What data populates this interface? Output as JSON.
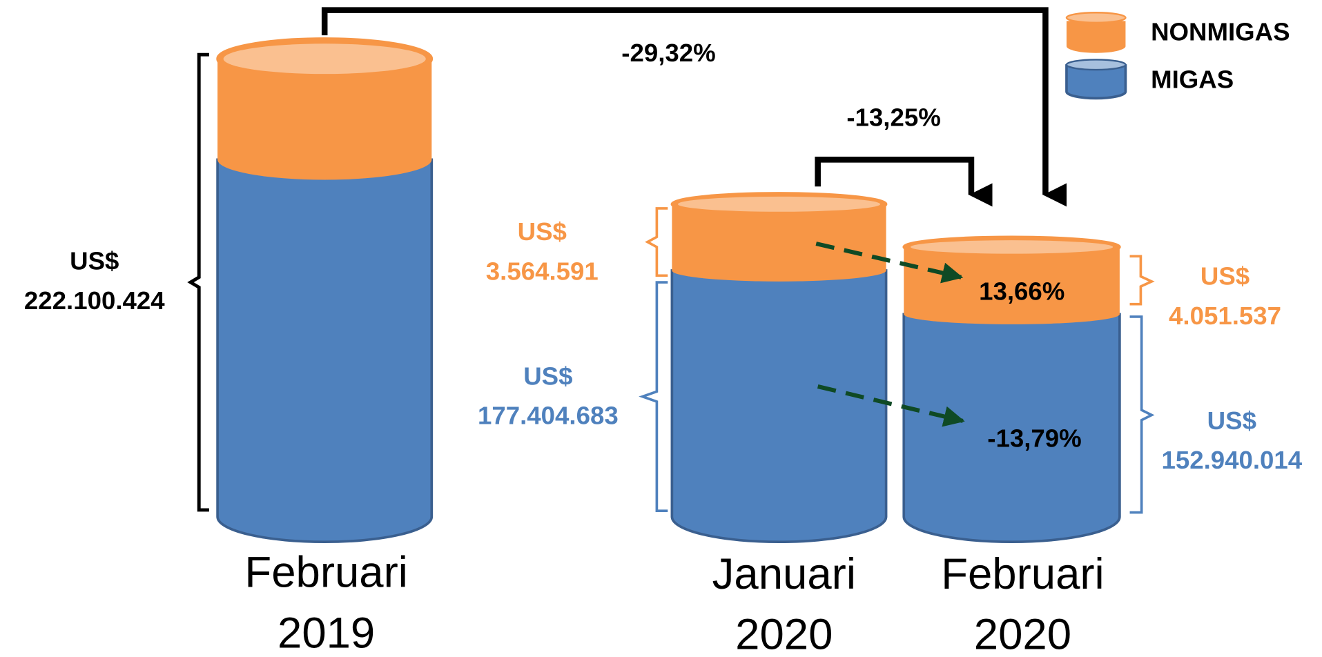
{
  "legend": [
    "NONMIGAS",
    "MIGAS"
  ],
  "columns": [
    {
      "label": [
        "Februari",
        "2019"
      ],
      "total": [
        "US$",
        "222.100.424"
      ]
    },
    {
      "label": [
        "Januari",
        "2020"
      ],
      "nonmigas": [
        "US$",
        "3.564.591"
      ],
      "migas": [
        "US$",
        "177.404.683"
      ]
    },
    {
      "label": [
        "Februari",
        "2020"
      ],
      "nonmigas": [
        "US$",
        "4.051.537"
      ],
      "migas": [
        "US$",
        "152.940.014"
      ]
    }
  ],
  "changes": [
    "-29,32%",
    "-13,25%",
    "13,66%",
    "-13,79%"
  ]
}
